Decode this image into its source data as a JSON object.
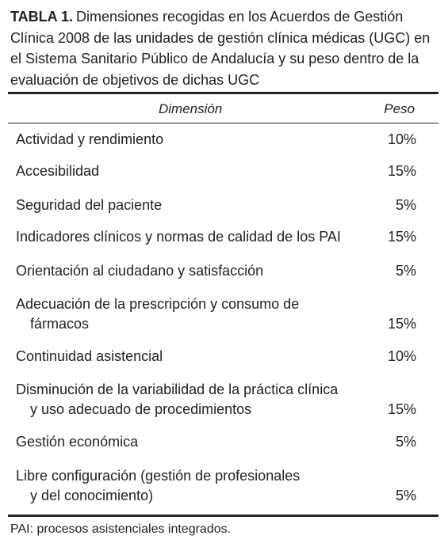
{
  "header": {
    "label": "TABLA 1.",
    "caption": "Dimensiones recogidas en los Acuerdos de Gestión Clínica 2008 de las unidades de gestión clínica médicas (UGC) en el Sistema Sanitario Público de Andalucía y su peso dentro de la evaluación de objetivos de dichas UGC"
  },
  "table": {
    "columns": [
      "Dimensión",
      "Peso"
    ],
    "rows": [
      {
        "dimension": [
          "Actividad y rendimiento"
        ],
        "weight": "10%"
      },
      {
        "dimension": [
          "Accesibilidad"
        ],
        "weight": "15%"
      },
      {
        "dimension": [
          "Seguridad del paciente"
        ],
        "weight": "5%"
      },
      {
        "dimension": [
          "Indicadores clínicos y normas de calidad de los PAI"
        ],
        "weight": "15%"
      },
      {
        "dimension": [
          "Orientación al ciudadano y satisfacción"
        ],
        "weight": "5%"
      },
      {
        "dimension": [
          "Adecuación de la prescripción y consumo de",
          "fármacos"
        ],
        "weight": "15%"
      },
      {
        "dimension": [
          "Continuidad asistencial"
        ],
        "weight": "10%"
      },
      {
        "dimension": [
          "Disminución de la variabilidad de la práctica clínica",
          "y uso adecuado de procedimientos"
        ],
        "weight": "15%"
      },
      {
        "dimension": [
          "Gestión económica"
        ],
        "weight": "5%"
      },
      {
        "dimension": [
          "Libre configuración (gestión de profesionales",
          "y del conocimiento)"
        ],
        "weight": "5%"
      }
    ]
  },
  "footnote": "PAI: procesos asistenciales integrados."
}
